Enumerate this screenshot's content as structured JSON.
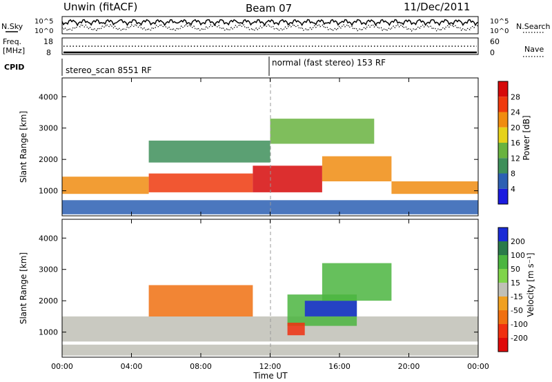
{
  "header": {
    "station": "Unwin (fitACF)",
    "beam": "Beam 07",
    "date": "11/Dec/2011"
  },
  "top_panels": {
    "nsky_label": "N.Sky",
    "nsearch_label": "N.Search",
    "noise_ticks_left": [
      "10^5",
      "10^0"
    ],
    "noise_ticks_right": [
      "10^5",
      "10^0"
    ],
    "freq_label": "Freq.",
    "freq_unit": "[MHz]",
    "freq_ticks": [
      "18",
      "8"
    ],
    "nave_label": "Nave",
    "nave_ticks": [
      "60",
      "0"
    ],
    "cpid_label": "CPID",
    "cpid_segments": [
      {
        "start_hour": 0,
        "label": "stereo_scan 8551 RF"
      },
      {
        "start_hour": 12,
        "label": "normal (fast stereo) 153 RF"
      }
    ]
  },
  "x_axis": {
    "title": "Time UT",
    "ticks": [
      "00:00",
      "04:00",
      "08:00",
      "12:00",
      "16:00",
      "20:00",
      "00:00"
    ]
  },
  "chart_data": [
    {
      "type": "heatmap",
      "name": "power",
      "ylabel": "Slant Range [km]",
      "xlim_hours": [
        0,
        24
      ],
      "ylim": [
        200,
        4600
      ],
      "y_ticks": [
        1000,
        2000,
        3000,
        4000
      ],
      "colorbar": {
        "title": "Power [dB]",
        "ticks": [
          "4",
          "8",
          "12",
          "16",
          "20",
          "24",
          "28"
        ],
        "range": [
          0,
          32
        ],
        "colors": [
          "#1a1adf",
          "#2c5fb3",
          "#3e8f5a",
          "#69b33f",
          "#e6d21a",
          "#f08c10",
          "#ef3a0e",
          "#d60a0a"
        ]
      },
      "bands": [
        {
          "start_hour": 0,
          "end_hour": 5,
          "range_low": 900,
          "range_high": 1450,
          "value": 22
        },
        {
          "start_hour": 5,
          "end_hour": 11,
          "range_low": 950,
          "range_high": 1550,
          "value": 25
        },
        {
          "start_hour": 11,
          "end_hour": 15,
          "range_low": 950,
          "range_high": 1800,
          "value": 28
        },
        {
          "start_hour": 15,
          "end_hour": 19,
          "range_low": 1300,
          "range_high": 2100,
          "value": 20
        },
        {
          "start_hour": 19,
          "end_hour": 24,
          "range_low": 900,
          "range_high": 1300,
          "value": 22
        },
        {
          "start_hour": 5,
          "end_hour": 12,
          "range_low": 1900,
          "range_high": 2600,
          "value": 10
        },
        {
          "start_hour": 12,
          "end_hour": 18,
          "range_low": 2500,
          "range_high": 3300,
          "value": 12
        },
        {
          "start_hour": 0,
          "end_hour": 24,
          "range_low": 250,
          "range_high": 700,
          "value": 6
        }
      ]
    },
    {
      "type": "heatmap",
      "name": "velocity",
      "ylabel": "Slant Range [km]",
      "xlim_hours": [
        0,
        24
      ],
      "ylim": [
        200,
        4600
      ],
      "y_ticks": [
        1000,
        2000,
        3000,
        4000
      ],
      "colorbar": {
        "title": "Velocity [m s⁻¹]",
        "ticks": [
          "200",
          "100",
          "50",
          "15",
          "-15",
          "-50",
          "-100",
          "-200"
        ],
        "colors": [
          "#1a2bd6",
          "#2a7a4a",
          "#4bb540",
          "#7fd44a",
          "#c0c0b6",
          "#f0a020",
          "#f07010",
          "#f03010",
          "#e00a0a"
        ]
      },
      "bands": [
        {
          "start_hour": 0,
          "end_hour": 24,
          "range_low": 700,
          "range_high": 1500,
          "value": 0
        },
        {
          "start_hour": 5,
          "end_hour": 11,
          "range_low": 1500,
          "range_high": 2500,
          "value": -40
        },
        {
          "start_hour": 13,
          "end_hour": 17,
          "range_low": 1200,
          "range_high": 2200,
          "value": 60
        },
        {
          "start_hour": 14,
          "end_hour": 17,
          "range_low": 1500,
          "range_high": 2000,
          "value": 180
        },
        {
          "start_hour": 13,
          "end_hour": 14,
          "range_low": 900,
          "range_high": 1300,
          "value": -80
        },
        {
          "start_hour": 15,
          "end_hour": 19,
          "range_low": 2000,
          "range_high": 3200,
          "value": 40
        },
        {
          "start_hour": 0,
          "end_hour": 24,
          "range_low": 250,
          "range_high": 600,
          "value": 0
        }
      ]
    }
  ]
}
